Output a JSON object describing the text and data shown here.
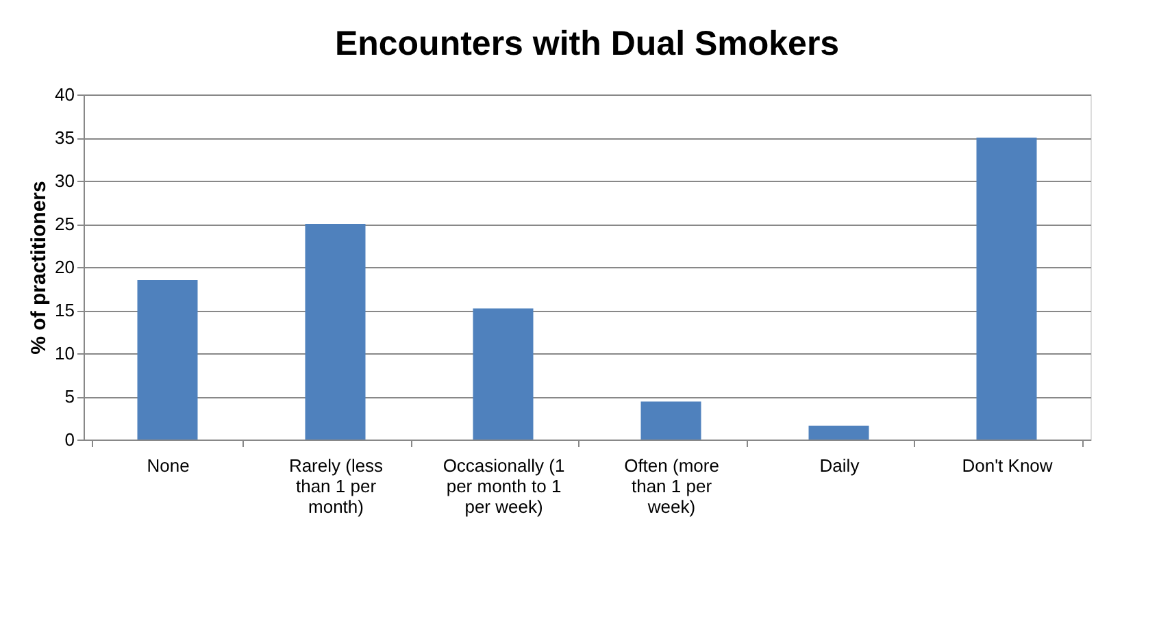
{
  "chart_data": {
    "type": "bar",
    "title": "Encounters with Dual Smokers",
    "ylabel": "% of practitioners",
    "categories": [
      "None",
      "Rarely (less than 1 per month)",
      "Occasionally (1 per month to 1 per week)",
      "Often (more than 1 per week)",
      "Daily",
      "Don't Know"
    ],
    "values": [
      18.5,
      25,
      15.2,
      4.4,
      1.6,
      35
    ],
    "color": "#4f81bd",
    "ylim": [
      0,
      40
    ],
    "yticks": [
      0,
      5,
      10,
      15,
      20,
      25,
      30,
      35,
      40
    ],
    "grid": "y"
  }
}
